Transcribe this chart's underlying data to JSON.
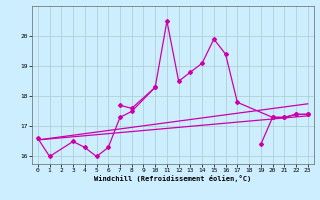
{
  "xlabel": "Windchill (Refroidissement éolien,°C)",
  "bg_color": "#cceeff",
  "line_color": "#cc00aa",
  "grid_color": "#aacccc",
  "xlim": [
    -0.5,
    23.5
  ],
  "ylim": [
    15.75,
    21.0
  ],
  "yticks": [
    16,
    17,
    18,
    19,
    20
  ],
  "xticks": [
    0,
    1,
    2,
    3,
    4,
    5,
    6,
    7,
    8,
    9,
    10,
    11,
    12,
    13,
    14,
    15,
    16,
    17,
    18,
    19,
    20,
    21,
    22,
    23
  ],
  "reg_lines": [
    [
      [
        0,
        23
      ],
      [
        16.55,
        17.35
      ]
    ],
    [
      [
        0,
        23
      ],
      [
        16.55,
        17.75
      ]
    ]
  ],
  "series": [
    {
      "x": [
        0,
        1,
        3,
        4,
        5,
        6,
        7,
        8,
        10
      ],
      "y": [
        16.6,
        16.0,
        16.5,
        16.3,
        16.0,
        16.3,
        17.3,
        17.5,
        18.3
      ],
      "connected": true
    },
    {
      "x": [
        7,
        8,
        10,
        11,
        12,
        13,
        14,
        15,
        16,
        17,
        20,
        21,
        22,
        23
      ],
      "y": [
        17.7,
        17.6,
        18.3,
        20.5,
        18.5,
        18.8,
        19.1,
        19.9,
        19.4,
        17.8,
        17.3,
        17.3,
        17.4,
        17.4
      ],
      "connected": true
    },
    {
      "x": [
        19,
        20,
        21,
        22,
        23
      ],
      "y": [
        16.4,
        17.3,
        17.3,
        17.4,
        17.4
      ],
      "connected": true
    }
  ]
}
